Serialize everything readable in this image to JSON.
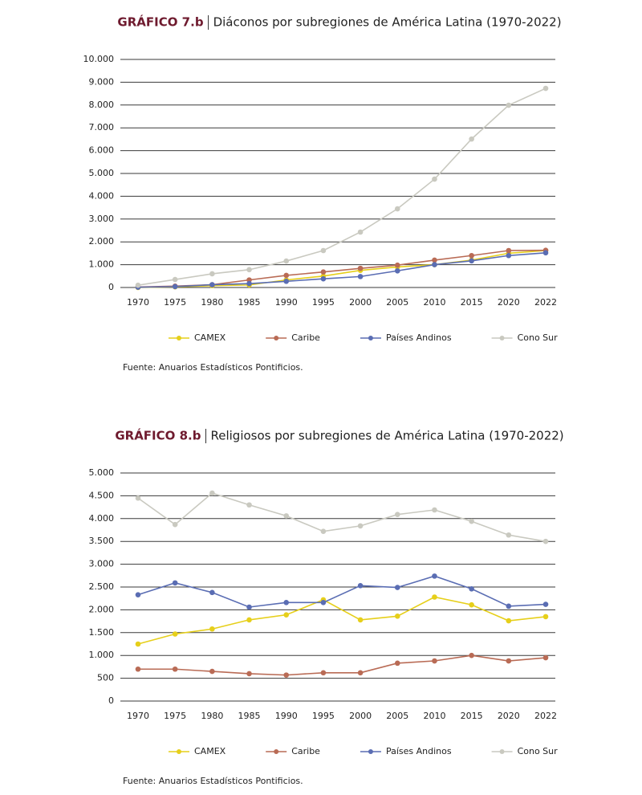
{
  "chart_data": [
    {
      "type": "line",
      "title_label": "GRÁFICO 7.b",
      "title": "Diáconos por subregiones de América Latina (1970-2022)",
      "categories": [
        "1970",
        "1975",
        "1980",
        "1985",
        "1990",
        "1995",
        "2000",
        "2005",
        "2010",
        "2015",
        "2020",
        "2022"
      ],
      "series": [
        {
          "name": "CAMEX",
          "color": "#e6cf1a",
          "values": [
            0,
            30,
            80,
            110,
            330,
            500,
            750,
            900,
            1000,
            1200,
            1500,
            1620
          ]
        },
        {
          "name": "Caribe",
          "color": "#b96b55",
          "values": [
            20,
            60,
            120,
            330,
            530,
            680,
            840,
            980,
            1200,
            1400,
            1620,
            1630
          ]
        },
        {
          "name": "Países Andinos",
          "color": "#5a6db3",
          "values": [
            10,
            40,
            120,
            170,
            270,
            380,
            480,
            730,
            1000,
            1170,
            1400,
            1520
          ]
        },
        {
          "name": "Cono Sur",
          "color": "#c9c9c0",
          "values": [
            100,
            350,
            600,
            780,
            1160,
            1620,
            2430,
            3450,
            4750,
            6510,
            7990,
            8730
          ]
        }
      ],
      "ylim": [
        0,
        10000
      ],
      "yticks": [
        0,
        {
          "value": 1000,
          "label": "1.000"
        },
        {
          "value": 2000,
          "label": "2.000"
        },
        {
          "value": 3000,
          "label": "3.000"
        },
        {
          "value": 4000,
          "label": "4.000"
        },
        {
          "value": 5000,
          "label": "5.000"
        },
        {
          "value": 6000,
          "label": "6.000"
        },
        {
          "value": 7000,
          "label": "7.000"
        },
        {
          "value": 8000,
          "label": "8.000"
        },
        {
          "value": 9000,
          "label": "9.000"
        },
        {
          "value": 10000,
          "label": "10.000"
        }
      ],
      "grid": true,
      "legend": "bottom",
      "source": "Fuente: Anuarios Estadísticos Pontificios."
    },
    {
      "type": "line",
      "title_label": "GRÁFICO 8.b",
      "title": "Religiosos por subregiones de América Latina (1970-2022)",
      "categories": [
        "1970",
        "1975",
        "1980",
        "1985",
        "1990",
        "1995",
        "2000",
        "2005",
        "2010",
        "2015",
        "2020",
        "2022"
      ],
      "series": [
        {
          "name": "CAMEX",
          "color": "#e6cf1a",
          "values": [
            1250,
            1470,
            1580,
            1780,
            1890,
            2220,
            1780,
            1860,
            2280,
            2110,
            1760,
            1850
          ]
        },
        {
          "name": "Caribe",
          "color": "#b96b55",
          "values": [
            700,
            700,
            650,
            600,
            570,
            620,
            620,
            830,
            880,
            1000,
            880,
            950
          ]
        },
        {
          "name": "Países Andinos",
          "color": "#5a6db3",
          "values": [
            2330,
            2590,
            2380,
            2060,
            2160,
            2160,
            2530,
            2490,
            2740,
            2460,
            2080,
            2120
          ]
        },
        {
          "name": "Cono Sur",
          "color": "#c9c9c0",
          "values": [
            4450,
            3870,
            4560,
            4300,
            4060,
            3720,
            3840,
            4090,
            4190,
            3940,
            3640,
            3500
          ]
        }
      ],
      "ylim": [
        0,
        5000
      ],
      "yticks": [
        0,
        500,
        {
          "value": 1000,
          "label": "1.000"
        },
        {
          "value": 1500,
          "label": "1.500"
        },
        {
          "value": 2000,
          "label": "2.000"
        },
        {
          "value": 2500,
          "label": "2.500"
        },
        {
          "value": 3000,
          "label": "3.000"
        },
        {
          "value": 3500,
          "label": "3.500"
        },
        {
          "value": 4000,
          "label": "4.000"
        },
        {
          "value": 4500,
          "label": "4.500"
        },
        {
          "value": 5000,
          "label": "5.000"
        }
      ],
      "grid": true,
      "legend": "bottom",
      "source": "Fuente: Anuarios Estadísticos Pontificios."
    }
  ]
}
